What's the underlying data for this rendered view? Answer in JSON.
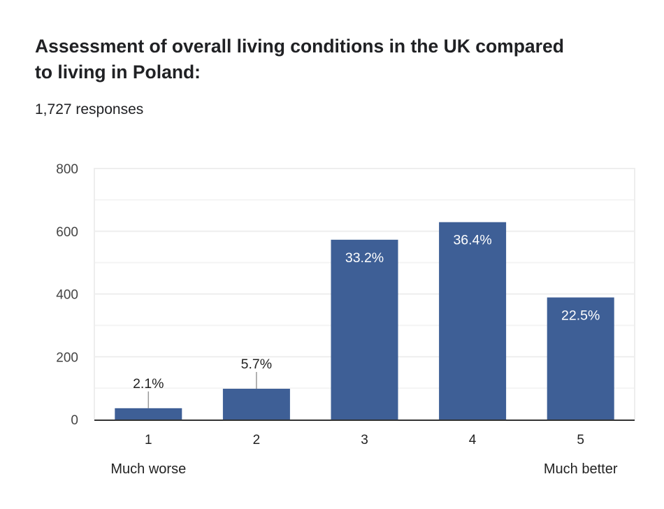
{
  "header": {
    "title": "Assessment of overall living conditions in the UK compared to living in Poland:",
    "responses": "1,727 responses"
  },
  "colors": {
    "bar": "#3e5f96",
    "grid": "#eeeeee",
    "minor_grid": "#f4f4f4",
    "axis": "#333333",
    "leader": "#999999"
  },
  "chart_data": {
    "type": "bar",
    "title": "Assessment of overall living conditions in the UK compared to living in Poland:",
    "subtitle": "1,727 responses",
    "categories": [
      "1",
      "2",
      "3",
      "4",
      "5"
    ],
    "values": [
      36,
      98,
      573,
      629,
      389
    ],
    "data_labels": [
      "2.1%",
      "5.7%",
      "33.2%",
      "36.4%",
      "22.5%"
    ],
    "yticks": [
      "0",
      "200",
      "400",
      "600",
      "800"
    ],
    "ytick_values": [
      0,
      200,
      400,
      600,
      800
    ],
    "ylim": [
      0,
      800
    ],
    "minor_grid_step": 100,
    "grid": true,
    "xlabel": "",
    "ylabel": "",
    "scale_labels": {
      "low": "Much worse",
      "high": "Much better"
    }
  }
}
